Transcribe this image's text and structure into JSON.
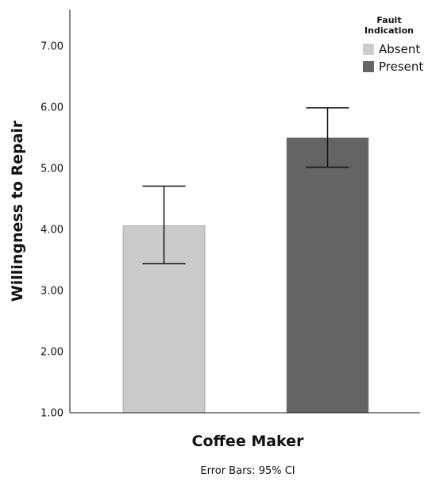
{
  "chart_data": {
    "type": "bar",
    "categories": [
      "Coffee Maker"
    ],
    "xlabel": "Coffee Maker",
    "ylabel": "Willingness to Repair",
    "ylim": [
      1.0,
      7.6
    ],
    "yticks": [
      "1.00",
      "2.00",
      "3.00",
      "4.00",
      "5.00",
      "6.00",
      "7.00"
    ],
    "ytick_values": [
      1,
      2,
      3,
      4,
      5,
      6,
      7
    ],
    "grid": false,
    "legend": {
      "title": "Fault Indication",
      "title_lines": [
        "Fault",
        "Indication"
      ],
      "placement": "top-right"
    },
    "series": [
      {
        "name": "Absent",
        "values": [
          4.06
        ],
        "ci_low": [
          3.44
        ],
        "ci_high": [
          4.71
        ],
        "color": "#cbcbcb"
      },
      {
        "name": "Present",
        "values": [
          5.5
        ],
        "ci_low": [
          5.02
        ],
        "ci_high": [
          5.99
        ],
        "color": "#646464"
      }
    ],
    "footnote": "Error Bars: 95% CI"
  }
}
